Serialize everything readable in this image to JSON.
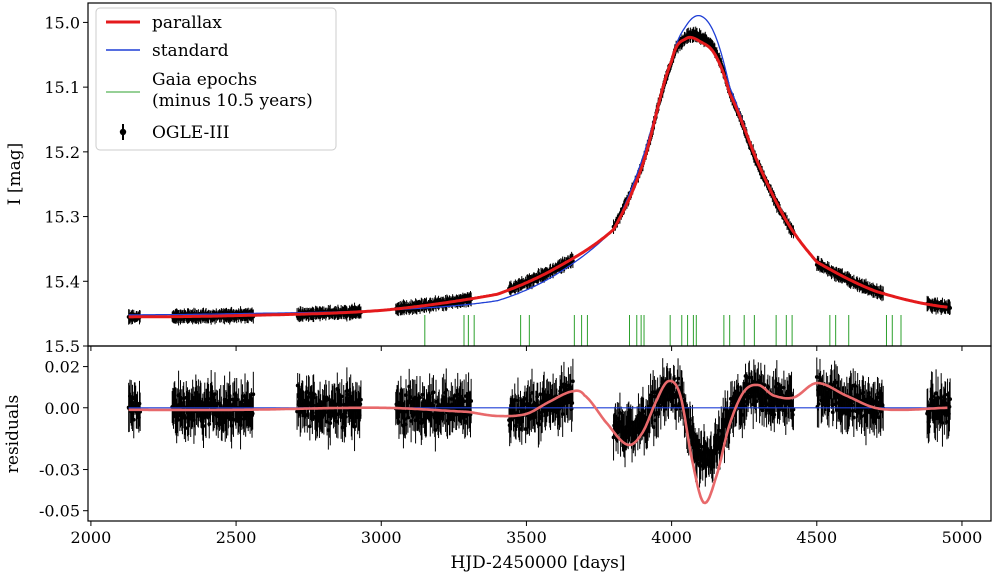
{
  "chart_data": [
    {
      "type": "line",
      "panel": "top",
      "title": "",
      "ylabel": "I [mag]",
      "xlim": [
        1990,
        5100
      ],
      "ylim": [
        15.5,
        14.97
      ],
      "y_inverted": true,
      "xticks": [
        2000,
        2500,
        3000,
        3500,
        4000,
        4500,
        5000
      ],
      "yticks": [
        15.0,
        15.1,
        15.2,
        15.3,
        15.4,
        15.5
      ],
      "ytick_labels": [
        "15.0",
        "15.1",
        "15.2",
        "15.3",
        "15.4",
        "15.5"
      ],
      "legend": {
        "placement": "top-left",
        "entries": [
          {
            "label": "parallax",
            "color": "#e41a1c"
          },
          {
            "label": "standard",
            "color": "#1f3fd6"
          },
          {
            "label": "Gaia epochs",
            "label2": "(minus 10.5 years)",
            "color": "#2ca02c"
          },
          {
            "label": "OGLE-III",
            "color": "#000000"
          }
        ]
      },
      "series": [
        {
          "name": "parallax",
          "color": "#e41a1c",
          "x": [
            2130,
            2500,
            3000,
            3400,
            3600,
            3800,
            3900,
            4000,
            4050,
            4100,
            4150,
            4200,
            4300,
            4400,
            4500,
            4700,
            4950
          ],
          "y": [
            15.455,
            15.453,
            15.445,
            15.42,
            15.38,
            15.32,
            15.22,
            15.06,
            15.025,
            15.03,
            15.05,
            15.11,
            15.22,
            15.31,
            15.37,
            15.415,
            15.44
          ]
        },
        {
          "name": "standard",
          "color": "#1f3fd6",
          "x": [
            2130,
            2500,
            3000,
            3400,
            3600,
            3800,
            3900,
            4000,
            4050,
            4100,
            4150,
            4200,
            4300,
            4400,
            4500,
            4700,
            4950
          ],
          "y": [
            15.452,
            15.45,
            15.445,
            15.43,
            15.39,
            15.32,
            15.21,
            15.06,
            15.005,
            14.99,
            15.02,
            15.1,
            15.22,
            15.31,
            15.37,
            15.415,
            15.44
          ]
        },
        {
          "name": "OGLE-III",
          "color": "#000000",
          "seasons": [
            [
              2130,
              2170
            ],
            [
              2280,
              2560
            ],
            [
              2710,
              2930
            ],
            [
              3050,
              3310
            ],
            [
              3440,
              3660
            ],
            [
              3800,
              4050
            ],
            [
              4050,
              4420
            ],
            [
              4500,
              4730
            ],
            [
              4880,
              4960
            ]
          ]
        }
      ],
      "gaia_epochs": [
        3150,
        3285,
        3300,
        3320,
        3480,
        3510,
        3665,
        3690,
        3710,
        3855,
        3880,
        3895,
        3905,
        3995,
        4035,
        4055,
        4075,
        4085,
        4180,
        4200,
        4250,
        4285,
        4360,
        4395,
        4415,
        4545,
        4565,
        4610,
        4740,
        4760,
        4790
      ]
    },
    {
      "type": "line",
      "panel": "bottom",
      "title": "",
      "xlabel": "HJD-2450000 [days]",
      "ylabel": "residuals",
      "xlim": [
        1990,
        5100
      ],
      "ylim": [
        -0.055,
        0.03
      ],
      "xticks": [
        2000,
        2500,
        3000,
        3500,
        4000,
        4500,
        5000
      ],
      "xtick_labels": [
        "2000",
        "2500",
        "3000",
        "3500",
        "4000",
        "4500",
        "5000"
      ],
      "yticks": [
        0.02,
        0.0,
        -0.03,
        -0.05
      ],
      "ytick_labels": [
        "0.02",
        "0.00",
        "-0.03",
        "-0.05"
      ],
      "series": [
        {
          "name": "parallax",
          "color": "#e8696b",
          "x": [
            2130,
            2500,
            3000,
            3300,
            3400,
            3500,
            3580,
            3660,
            3700,
            3780,
            3850,
            3900,
            3950,
            3990,
            4030,
            4070,
            4110,
            4150,
            4200,
            4250,
            4300,
            4350,
            4420,
            4500,
            4600,
            4700,
            4800,
            4950
          ],
          "y": [
            -0.001,
            -0.001,
            0.0,
            -0.002,
            -0.004,
            -0.003,
            0.003,
            0.008,
            0.006,
            -0.008,
            -0.018,
            -0.012,
            0.004,
            0.013,
            0.006,
            -0.025,
            -0.046,
            -0.035,
            -0.008,
            0.008,
            0.011,
            0.006,
            0.005,
            0.012,
            0.006,
            0.0,
            -0.001,
            0.0
          ]
        },
        {
          "name": "standard",
          "color": "#1f3fd6",
          "x": [
            2130,
            4950
          ],
          "y": [
            0.0,
            0.0
          ]
        },
        {
          "name": "OGLE-III",
          "color": "#000000",
          "seasons": [
            [
              2130,
              2170
            ],
            [
              2280,
              2560
            ],
            [
              2710,
              2930
            ],
            [
              3050,
              3310
            ],
            [
              3440,
              3660
            ],
            [
              3800,
              4050
            ],
            [
              4050,
              4420
            ],
            [
              4500,
              4730
            ],
            [
              4880,
              4960
            ]
          ]
        }
      ]
    }
  ]
}
